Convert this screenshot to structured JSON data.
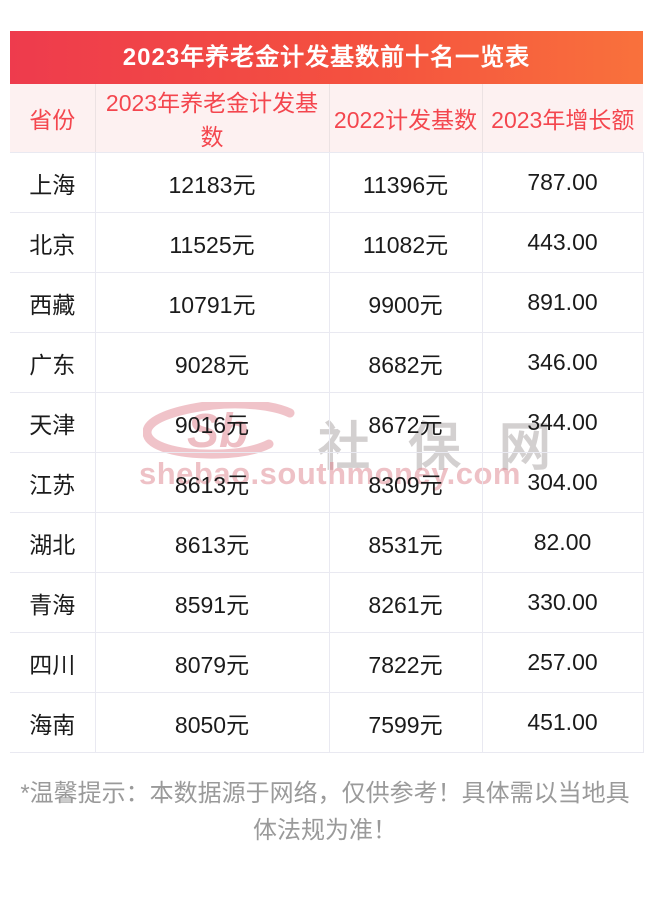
{
  "title": "2023年养老金计发基数前十名一览表",
  "colors": {
    "title_gradient_left": "#ee3b4d",
    "title_gradient_right": "#f9713c",
    "header_bg": "#fdf1f1",
    "header_text": "#f4464e",
    "row_border": "#e9e9f1",
    "body_text": "#1b1b1b",
    "footer_text": "#9a9a9a",
    "watermark_red": "#c82838"
  },
  "table": {
    "columns": [
      "省份",
      "2023年养老金计发基数",
      "2022计发基数",
      "2023年增长额"
    ],
    "rows": [
      [
        "上海",
        "12183元",
        "11396元",
        "787.00"
      ],
      [
        "北京",
        "11525元",
        "11082元",
        "443.00"
      ],
      [
        "西藏",
        "10791元",
        "9900元",
        "891.00"
      ],
      [
        "广东",
        "9028元",
        "8682元",
        "346.00"
      ],
      [
        "天津",
        "9016元",
        "8672元",
        "344.00"
      ],
      [
        "江苏",
        "8613元",
        "8309元",
        "304.00"
      ],
      [
        "湖北",
        "8613元",
        "8531元",
        "82.00"
      ],
      [
        "青海",
        "8591元",
        "8261元",
        "330.00"
      ],
      [
        "四川",
        "8079元",
        "7822元",
        "257.00"
      ],
      [
        "海南",
        "8050元",
        "7599元",
        "451.00"
      ]
    ]
  },
  "watermark": {
    "logo_text": "Sb",
    "site_name": "社 保 网",
    "site_url": "shebao.southmoney.com"
  },
  "footer": {
    "lines": [
      "*温馨提示：本数据源于网络，仅供参考！具体需以当地具",
      "体法规为准！"
    ]
  },
  "chart_data": {
    "type": "table",
    "title": "2023年养老金计发基数前十名一览表",
    "columns": [
      "省份",
      "2023年养老金计发基数",
      "2022计发基数",
      "2023年增长额"
    ],
    "rows": [
      {
        "province": "上海",
        "base_2023": 12183,
        "base_2022": 11396,
        "increase_2023": 787.0
      },
      {
        "province": "北京",
        "base_2023": 11525,
        "base_2022": 11082,
        "increase_2023": 443.0
      },
      {
        "province": "西藏",
        "base_2023": 10791,
        "base_2022": 9900,
        "increase_2023": 891.0
      },
      {
        "province": "广东",
        "base_2023": 9028,
        "base_2022": 8682,
        "increase_2023": 346.0
      },
      {
        "province": "天津",
        "base_2023": 9016,
        "base_2022": 8672,
        "increase_2023": 344.0
      },
      {
        "province": "江苏",
        "base_2023": 8613,
        "base_2022": 8309,
        "increase_2023": 304.0
      },
      {
        "province": "湖北",
        "base_2023": 8613,
        "base_2022": 8531,
        "increase_2023": 82.0
      },
      {
        "province": "青海",
        "base_2023": 8591,
        "base_2022": 8261,
        "increase_2023": 330.0
      },
      {
        "province": "四川",
        "base_2023": 8079,
        "base_2022": 7822,
        "increase_2023": 257.0
      },
      {
        "province": "海南",
        "base_2023": 8050,
        "base_2022": 7599,
        "increase_2023": 451.0
      }
    ],
    "units": {
      "base_2023": "元",
      "base_2022": "元",
      "increase_2023": ""
    },
    "notes": "top 10 provinces by 2023 pension calculation base"
  }
}
